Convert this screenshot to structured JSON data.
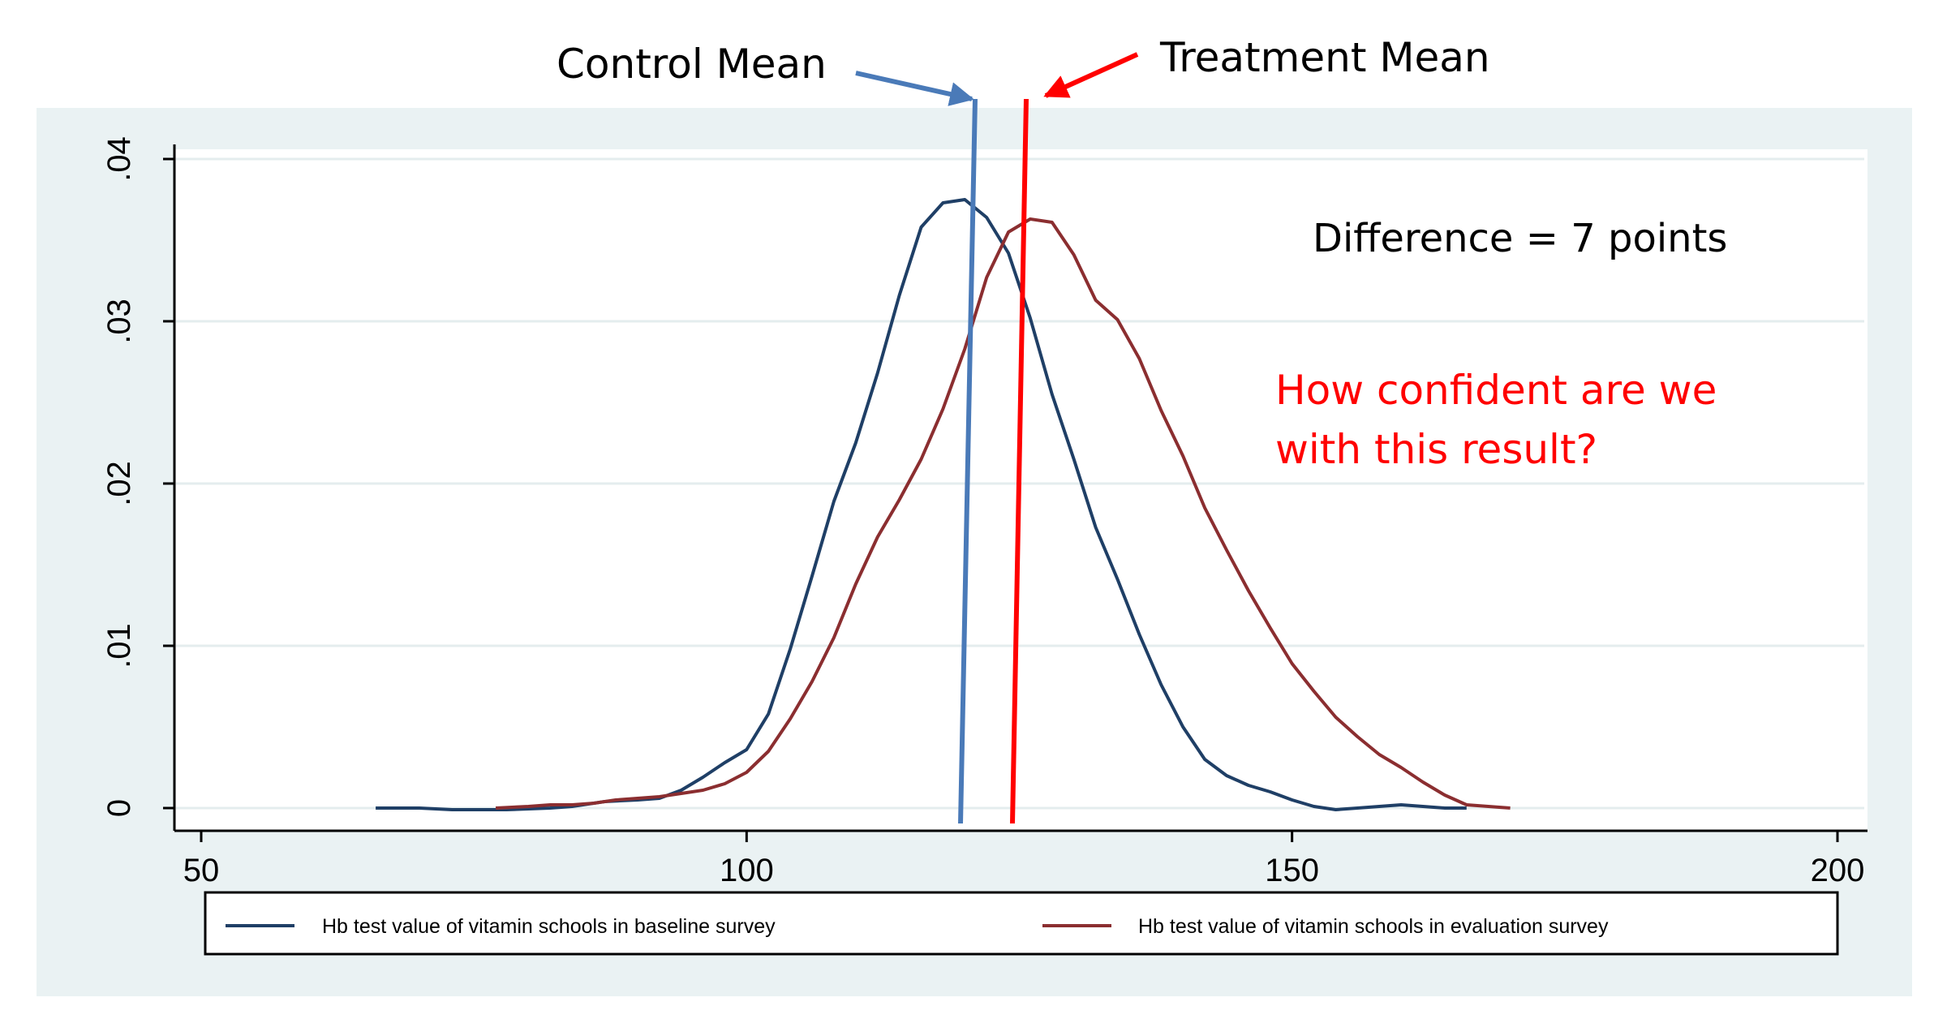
{
  "chart_data": {
    "type": "line",
    "title": "",
    "xlabel": "",
    "ylabel": "",
    "xlim": [
      50,
      200
    ],
    "ylim": [
      0,
      0.04
    ],
    "x_ticks": [
      50,
      100,
      150,
      200
    ],
    "x_tick_labels": [
      "50",
      "100",
      "150",
      "200"
    ],
    "y_ticks": [
      0,
      0.01,
      0.02,
      0.03,
      0.04
    ],
    "y_tick_labels": [
      "0",
      ".01",
      ".02",
      ".03",
      ".04"
    ],
    "grid": true,
    "legend_position": "bottom",
    "series": [
      {
        "name": "Hb test value of vitamin schools in baseline survey",
        "color": "#1f3f66",
        "points": [
          [
            66,
            0
          ],
          [
            70,
            0
          ],
          [
            73,
            -0.0001
          ],
          [
            78,
            -0.0001
          ],
          [
            82,
            0
          ],
          [
            84,
            0.0001
          ],
          [
            87,
            0.0004
          ],
          [
            90,
            0.0005
          ],
          [
            92,
            0.0006
          ],
          [
            94,
            0.0011
          ],
          [
            96,
            0.0019
          ],
          [
            98,
            0.0028
          ],
          [
            100,
            0.0036
          ],
          [
            102,
            0.0058
          ],
          [
            104,
            0.0098
          ],
          [
            106,
            0.0143
          ],
          [
            108,
            0.0189
          ],
          [
            110,
            0.0225
          ],
          [
            112,
            0.0268
          ],
          [
            114,
            0.0316
          ],
          [
            116,
            0.0358
          ],
          [
            118,
            0.0373
          ],
          [
            120,
            0.0375
          ],
          [
            122,
            0.0364
          ],
          [
            124,
            0.0342
          ],
          [
            126,
            0.0302
          ],
          [
            128,
            0.0255
          ],
          [
            130,
            0.0215
          ],
          [
            132,
            0.0173
          ],
          [
            134,
            0.0141
          ],
          [
            136,
            0.0107
          ],
          [
            138,
            0.0076
          ],
          [
            140,
            0.005
          ],
          [
            142,
            0.003
          ],
          [
            144,
            0.002
          ],
          [
            146,
            0.0014
          ],
          [
            148,
            0.001
          ],
          [
            150,
            0.0005
          ],
          [
            152,
            0.0001
          ],
          [
            154,
            -0.0001
          ],
          [
            156,
            0
          ],
          [
            158,
            0.0001
          ],
          [
            160,
            0.0002
          ],
          [
            162,
            0.0001
          ],
          [
            164,
            0
          ],
          [
            166,
            0
          ]
        ]
      },
      {
        "name": "Hb test value of vitamin schools in evaluation survey",
        "color": "#8b2e30",
        "points": [
          [
            77,
            0
          ],
          [
            80,
            0.0001
          ],
          [
            82,
            0.0002
          ],
          [
            84,
            0.0002
          ],
          [
            86,
            0.0003
          ],
          [
            88,
            0.0005
          ],
          [
            90,
            0.0006
          ],
          [
            92,
            0.0007
          ],
          [
            94,
            0.0009
          ],
          [
            96,
            0.0011
          ],
          [
            98,
            0.0015
          ],
          [
            100,
            0.0022
          ],
          [
            102,
            0.0035
          ],
          [
            104,
            0.0055
          ],
          [
            106,
            0.0078
          ],
          [
            108,
            0.0105
          ],
          [
            110,
            0.0138
          ],
          [
            112,
            0.0167
          ],
          [
            114,
            0.019
          ],
          [
            116,
            0.0215
          ],
          [
            118,
            0.0246
          ],
          [
            120,
            0.0283
          ],
          [
            122,
            0.0327
          ],
          [
            124,
            0.0355
          ],
          [
            126,
            0.0363
          ],
          [
            128,
            0.0361
          ],
          [
            130,
            0.0341
          ],
          [
            132,
            0.0313
          ],
          [
            134,
            0.0301
          ],
          [
            136,
            0.0277
          ],
          [
            138,
            0.0245
          ],
          [
            140,
            0.0217
          ],
          [
            142,
            0.0185
          ],
          [
            144,
            0.0159
          ],
          [
            146,
            0.0134
          ],
          [
            148,
            0.0111
          ],
          [
            150,
            0.0089
          ],
          [
            152,
            0.0072
          ],
          [
            154,
            0.0056
          ],
          [
            156,
            0.0044
          ],
          [
            158,
            0.0033
          ],
          [
            160,
            0.0025
          ],
          [
            162,
            0.0016
          ],
          [
            164,
            0.0008
          ],
          [
            166,
            0.0002
          ],
          [
            168,
            0.0001
          ],
          [
            170,
            0
          ]
        ]
      }
    ],
    "annotations": {
      "control_mean": {
        "label": "Control Mean",
        "color": "#4a7ab8"
      },
      "treatment_mean": {
        "label": "Treatment Mean",
        "color": "#ff0000"
      },
      "difference": {
        "text": "Difference = 7 points",
        "color": "#000000"
      },
      "question": {
        "lines": [
          "How confident are we",
          "with this result?"
        ],
        "color": "#ff0000"
      }
    }
  }
}
